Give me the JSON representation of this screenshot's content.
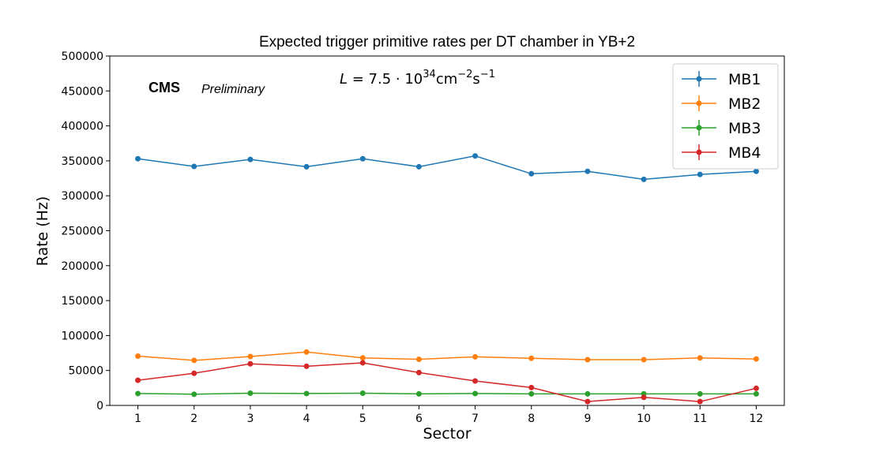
{
  "chart_data": {
    "type": "line",
    "title": "Expected trigger primitive rates per DT chamber in YB+2",
    "xlabel": "Sector",
    "ylabel": "Rate (Hz)",
    "x": [
      1,
      2,
      3,
      4,
      5,
      6,
      7,
      8,
      9,
      10,
      11,
      12
    ],
    "xlim": [
      0.5,
      12.5
    ],
    "ylim": [
      0,
      500000
    ],
    "yticks": [
      0,
      50000,
      100000,
      150000,
      200000,
      250000,
      300000,
      350000,
      400000,
      450000,
      500000
    ],
    "legend_position": "top-right",
    "grid": false,
    "series": [
      {
        "name": "MB1",
        "color": "#1f77b4",
        "values": [
          353000,
          342000,
          352000,
          341500,
          353000,
          341500,
          357000,
          331500,
          335000,
          323500,
          330500,
          335000
        ]
      },
      {
        "name": "MB2",
        "color": "#ff7f0e",
        "values": [
          70500,
          64500,
          70000,
          76500,
          68000,
          66000,
          69500,
          67500,
          65500,
          65500,
          68000,
          66500
        ]
      },
      {
        "name": "MB3",
        "color": "#2ca02c",
        "values": [
          17000,
          16000,
          17500,
          17000,
          17500,
          16500,
          17000,
          16500,
          16500,
          16500,
          16500,
          16500
        ]
      },
      {
        "name": "MB4",
        "color": "#d62728",
        "values": [
          36000,
          46000,
          59500,
          56000,
          61000,
          47000,
          35000,
          25500,
          5500,
          11500,
          5500,
          24500
        ]
      }
    ],
    "annotations": {
      "experiment": "CMS",
      "status": "Preliminary",
      "lumi_prefix": "L",
      "lumi_value": " = 7.5 · 10",
      "lumi_exp": "34",
      "lumi_unit1": "cm",
      "lumi_unit1_exp": "−2",
      "lumi_unit2": "s",
      "lumi_unit2_exp": "−1"
    }
  }
}
